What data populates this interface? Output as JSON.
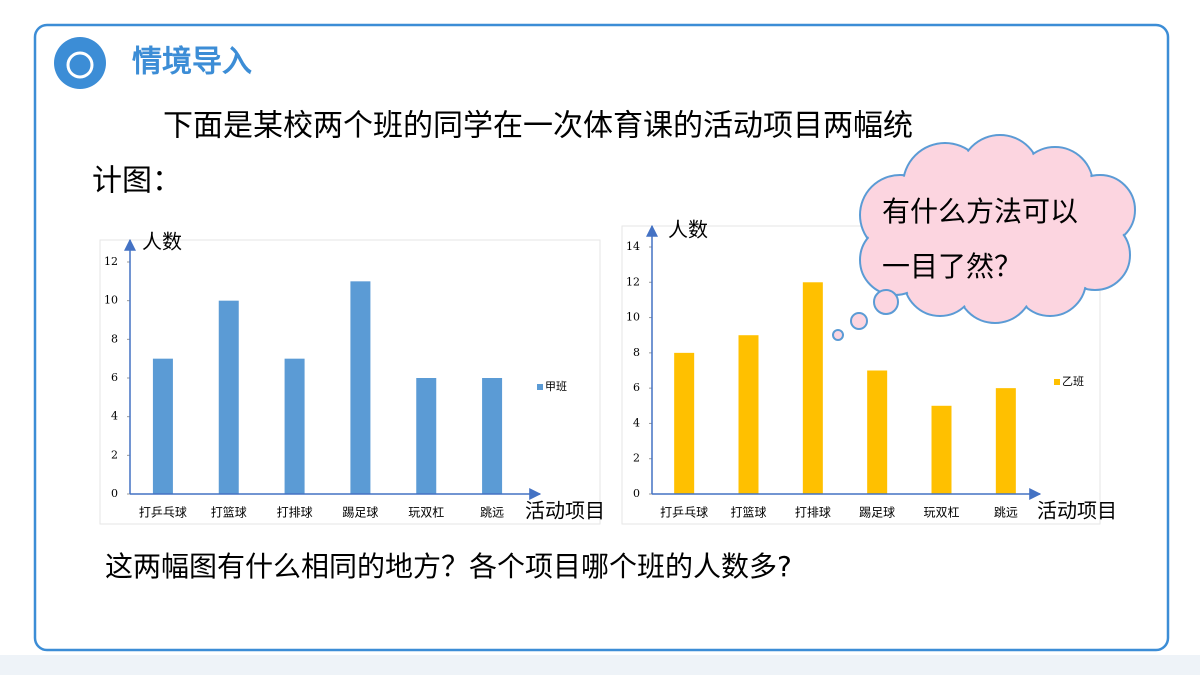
{
  "header": {
    "title": "情境导入"
  },
  "paragraph": [
    "下面是某校两个班的同学在一次体育课的活动项目两幅统",
    "计图："
  ],
  "cloud": [
    "有什么方法可以",
    "一目了然？"
  ],
  "question": "这两幅图有什么相同的地方？各个项目哪个班的人数多?",
  "chart_data": [
    {
      "type": "bar",
      "y_label": "人数",
      "x_label": "活动项目",
      "categories": [
        "打乒乓球",
        "打篮球",
        "打排球",
        "踢足球",
        "玩双杠",
        "跳远"
      ],
      "series": [
        {
          "name": "甲班",
          "color": "#5b9bd5",
          "values": [
            7,
            10,
            7,
            11,
            6,
            6
          ]
        }
      ],
      "ylim": [
        0,
        12
      ],
      "yticks": [
        0,
        2,
        4,
        6,
        8,
        10,
        12
      ],
      "legend": "right"
    },
    {
      "type": "bar",
      "y_label": "人数",
      "x_label": "活动项目",
      "categories": [
        "打乒乓球",
        "打篮球",
        "打排球",
        "踢足球",
        "玩双杠",
        "跳远"
      ],
      "series": [
        {
          "name": "乙班",
          "color": "#ffc000",
          "values": [
            8,
            9,
            12,
            7,
            5,
            6
          ]
        }
      ],
      "ylim": [
        0,
        14
      ],
      "yticks": [
        0,
        2,
        4,
        6,
        8,
        10,
        12,
        14
      ],
      "legend": "right"
    }
  ]
}
